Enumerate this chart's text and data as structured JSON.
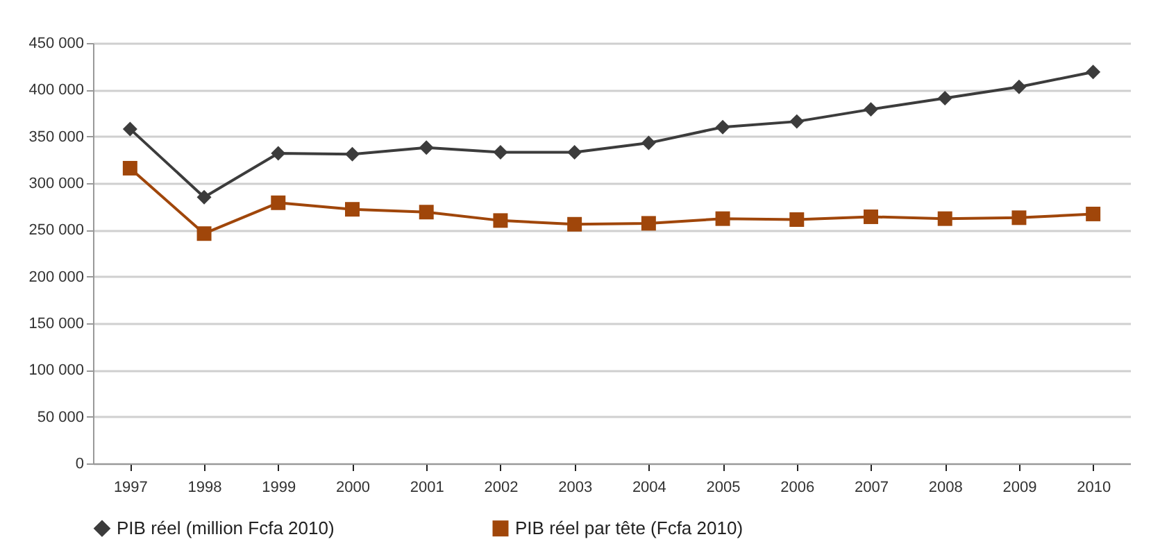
{
  "chart_data": {
    "type": "line",
    "categories": [
      "1997",
      "1998",
      "1999",
      "2000",
      "2001",
      "2002",
      "2003",
      "2004",
      "2005",
      "2006",
      "2007",
      "2008",
      "2009",
      "2010"
    ],
    "series": [
      {
        "name": "PIB réel (million Fcfa 2010)",
        "color": "#3c3c3c",
        "marker": "diamond",
        "values": [
          358000,
          285000,
          332000,
          331000,
          338000,
          333000,
          333000,
          343000,
          360000,
          366000,
          379000,
          391000,
          403000,
          419000
        ]
      },
      {
        "name": "PIB réel par tête (Fcfa 2010)",
        "color": "#a0460a",
        "marker": "square",
        "values": [
          316000,
          246000,
          279000,
          272000,
          269000,
          260000,
          256000,
          257000,
          262000,
          261000,
          264000,
          262000,
          263000,
          267000
        ]
      }
    ],
    "ylim": [
      0,
      450000
    ],
    "yticks": [
      0,
      {
        "value": 50000,
        "label": "50 000"
      },
      {
        "value": 100000,
        "label": "100 000"
      },
      {
        "value": 150000,
        "label": "150 000"
      },
      {
        "value": 200000,
        "label": "200 000"
      },
      {
        "value": 250000,
        "label": "250 000"
      },
      {
        "value": 300000,
        "label": "300 000"
      },
      {
        "value": 350000,
        "label": "350 000"
      },
      {
        "value": 400000,
        "label": "400 000"
      },
      {
        "value": 450000,
        "label": "450 000"
      }
    ],
    "grid": "y",
    "legend": "bottom",
    "line_style": "solid"
  }
}
